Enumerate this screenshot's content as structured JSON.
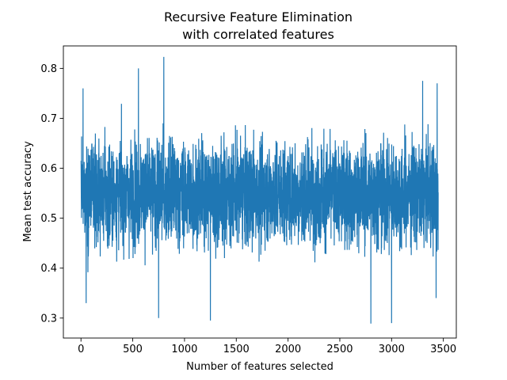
{
  "chart_data": {
    "type": "line",
    "title_line1": "Recursive Feature Elimination",
    "title_line2": "with correlated features",
    "xlabel": "Number of features selected",
    "ylabel": "Mean test accuracy",
    "xlim": [
      -170,
      3625
    ],
    "ylim": [
      0.26,
      0.845
    ],
    "x_ticks": [
      0,
      500,
      1000,
      1500,
      2000,
      2500,
      3000,
      3500
    ],
    "x_tick_labels": [
      "0",
      "500",
      "1000",
      "1500",
      "2000",
      "2500",
      "3000",
      "3500"
    ],
    "y_ticks": [
      0.3,
      0.4,
      0.5,
      0.6,
      0.7,
      0.8
    ],
    "y_tick_labels": [
      "0.3",
      "0.4",
      "0.5",
      "0.6",
      "0.7",
      "0.8"
    ],
    "series": [
      {
        "color": "#1f77b4",
        "x_start": 1,
        "x_end": 3451,
        "n_points": 3451,
        "mean": 0.55,
        "typical_range": [
          0.38,
          0.72
        ],
        "max": 0.823,
        "min": 0.289,
        "start_value": 0.615,
        "end_value": 0.55,
        "spikes": [
          {
            "x": 20,
            "y": 0.76
          },
          {
            "x": 50,
            "y": 0.33
          },
          {
            "x": 555,
            "y": 0.8
          },
          {
            "x": 750,
            "y": 0.3
          },
          {
            "x": 800,
            "y": 0.823
          },
          {
            "x": 1250,
            "y": 0.295
          },
          {
            "x": 2800,
            "y": 0.289
          },
          {
            "x": 3000,
            "y": 0.29
          },
          {
            "x": 3300,
            "y": 0.775
          },
          {
            "x": 3440,
            "y": 0.77
          },
          {
            "x": 3430,
            "y": 0.34
          }
        ]
      }
    ],
    "grid": false,
    "legend": "none"
  }
}
